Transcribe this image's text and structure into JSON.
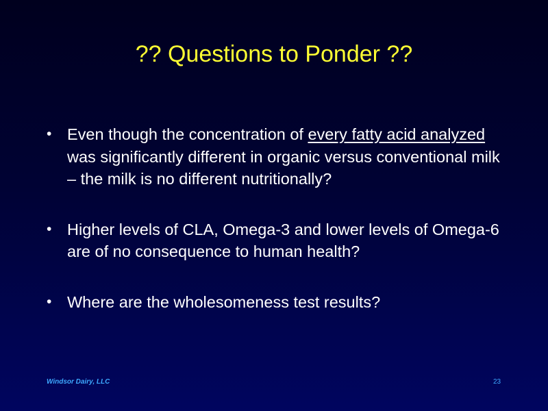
{
  "slide": {
    "title": "?? Questions to Ponder ??",
    "bullets": [
      {
        "marker": "•",
        "before": "Even though the concentration of ",
        "underlined": "every fatty acid analyzed",
        "after": " was significantly different in organic versus conventional milk – the milk is no different nutritionally?"
      },
      {
        "marker": "•",
        "text": "Higher levels of CLA, Omega-3 and lower levels of Omega-6 are of no consequence to human health?"
      },
      {
        "marker": "•",
        "text": "Where are the wholesomeness test results?"
      }
    ],
    "footer": {
      "company": "Windsor Dairy, LLC",
      "page_number": "23"
    },
    "colors": {
      "title": "#ffff33",
      "body_text": "#ffffff",
      "footer": "#3da9ff",
      "background_top": "#00001e",
      "background_bottom": "#00055f"
    }
  }
}
